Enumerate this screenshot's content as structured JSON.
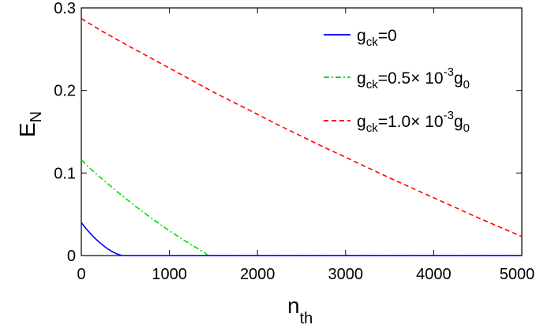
{
  "chart_data": {
    "type": "line",
    "xlabel": {
      "main": "n",
      "sub": "th"
    },
    "ylabel": {
      "main": "E",
      "sub": "N"
    },
    "xlim": [
      0,
      5000
    ],
    "ylim": [
      0,
      0.3
    ],
    "xticks": [
      0,
      1000,
      2000,
      3000,
      4000,
      5000
    ],
    "xtick_labels": [
      "0",
      "1000",
      "2000",
      "3000",
      "4000",
      "5000"
    ],
    "yticks": [
      0,
      0.1,
      0.2,
      0.3
    ],
    "ytick_labels": [
      "0",
      "0.1",
      "0.2",
      "0.3"
    ],
    "grid": false,
    "legend_position": "top-right",
    "series": [
      {
        "id": "s0",
        "color": "#0000ff",
        "dash": "solid",
        "legend": {
          "g": "g",
          "sub": "ck",
          "rest": "=0"
        },
        "x": [
          0,
          50,
          100,
          150,
          200,
          250,
          300,
          350,
          400,
          450,
          470,
          500,
          1000,
          2000,
          3000,
          4000,
          5000
        ],
        "y": [
          0.04,
          0.033,
          0.027,
          0.0215,
          0.0165,
          0.012,
          0.008,
          0.0048,
          0.0022,
          0.0004,
          0,
          0,
          0,
          0,
          0,
          0,
          0
        ]
      },
      {
        "id": "s1",
        "color": "#00dd00",
        "dash": "dashdot",
        "legend": {
          "g": "g",
          "sub": "ck",
          "rest": "=0.5× 10",
          "sup": "-3",
          "tail": "g",
          "tailsub": "0"
        },
        "x": [
          0,
          100,
          200,
          300,
          400,
          500,
          600,
          700,
          800,
          900,
          1000,
          1100,
          1200,
          1300,
          1400,
          1440,
          1500,
          2000,
          3000,
          4000,
          5000
        ],
        "y": [
          0.116,
          0.1055,
          0.096,
          0.087,
          0.078,
          0.0695,
          0.061,
          0.053,
          0.045,
          0.0375,
          0.03,
          0.023,
          0.0162,
          0.0098,
          0.0035,
          0,
          0,
          0,
          0,
          0,
          0
        ]
      },
      {
        "id": "s2",
        "color": "#ff0000",
        "dash": "dashed",
        "legend": {
          "g": "g",
          "sub": "ck",
          "rest": "=1.0× 10",
          "sup": "-3",
          "tail": "g",
          "tailsub": "0"
        },
        "x": [
          0,
          250,
          500,
          750,
          1000,
          1250,
          1500,
          1750,
          2000,
          2250,
          2500,
          2750,
          3000,
          3250,
          3500,
          3750,
          4000,
          4250,
          4500,
          4750,
          5000
        ],
        "y": [
          0.287,
          0.271,
          0.256,
          0.2415,
          0.227,
          0.2125,
          0.198,
          0.1845,
          0.171,
          0.1575,
          0.1445,
          0.1315,
          0.119,
          0.1065,
          0.094,
          0.082,
          0.07,
          0.058,
          0.046,
          0.0345,
          0.023
        ]
      }
    ]
  }
}
